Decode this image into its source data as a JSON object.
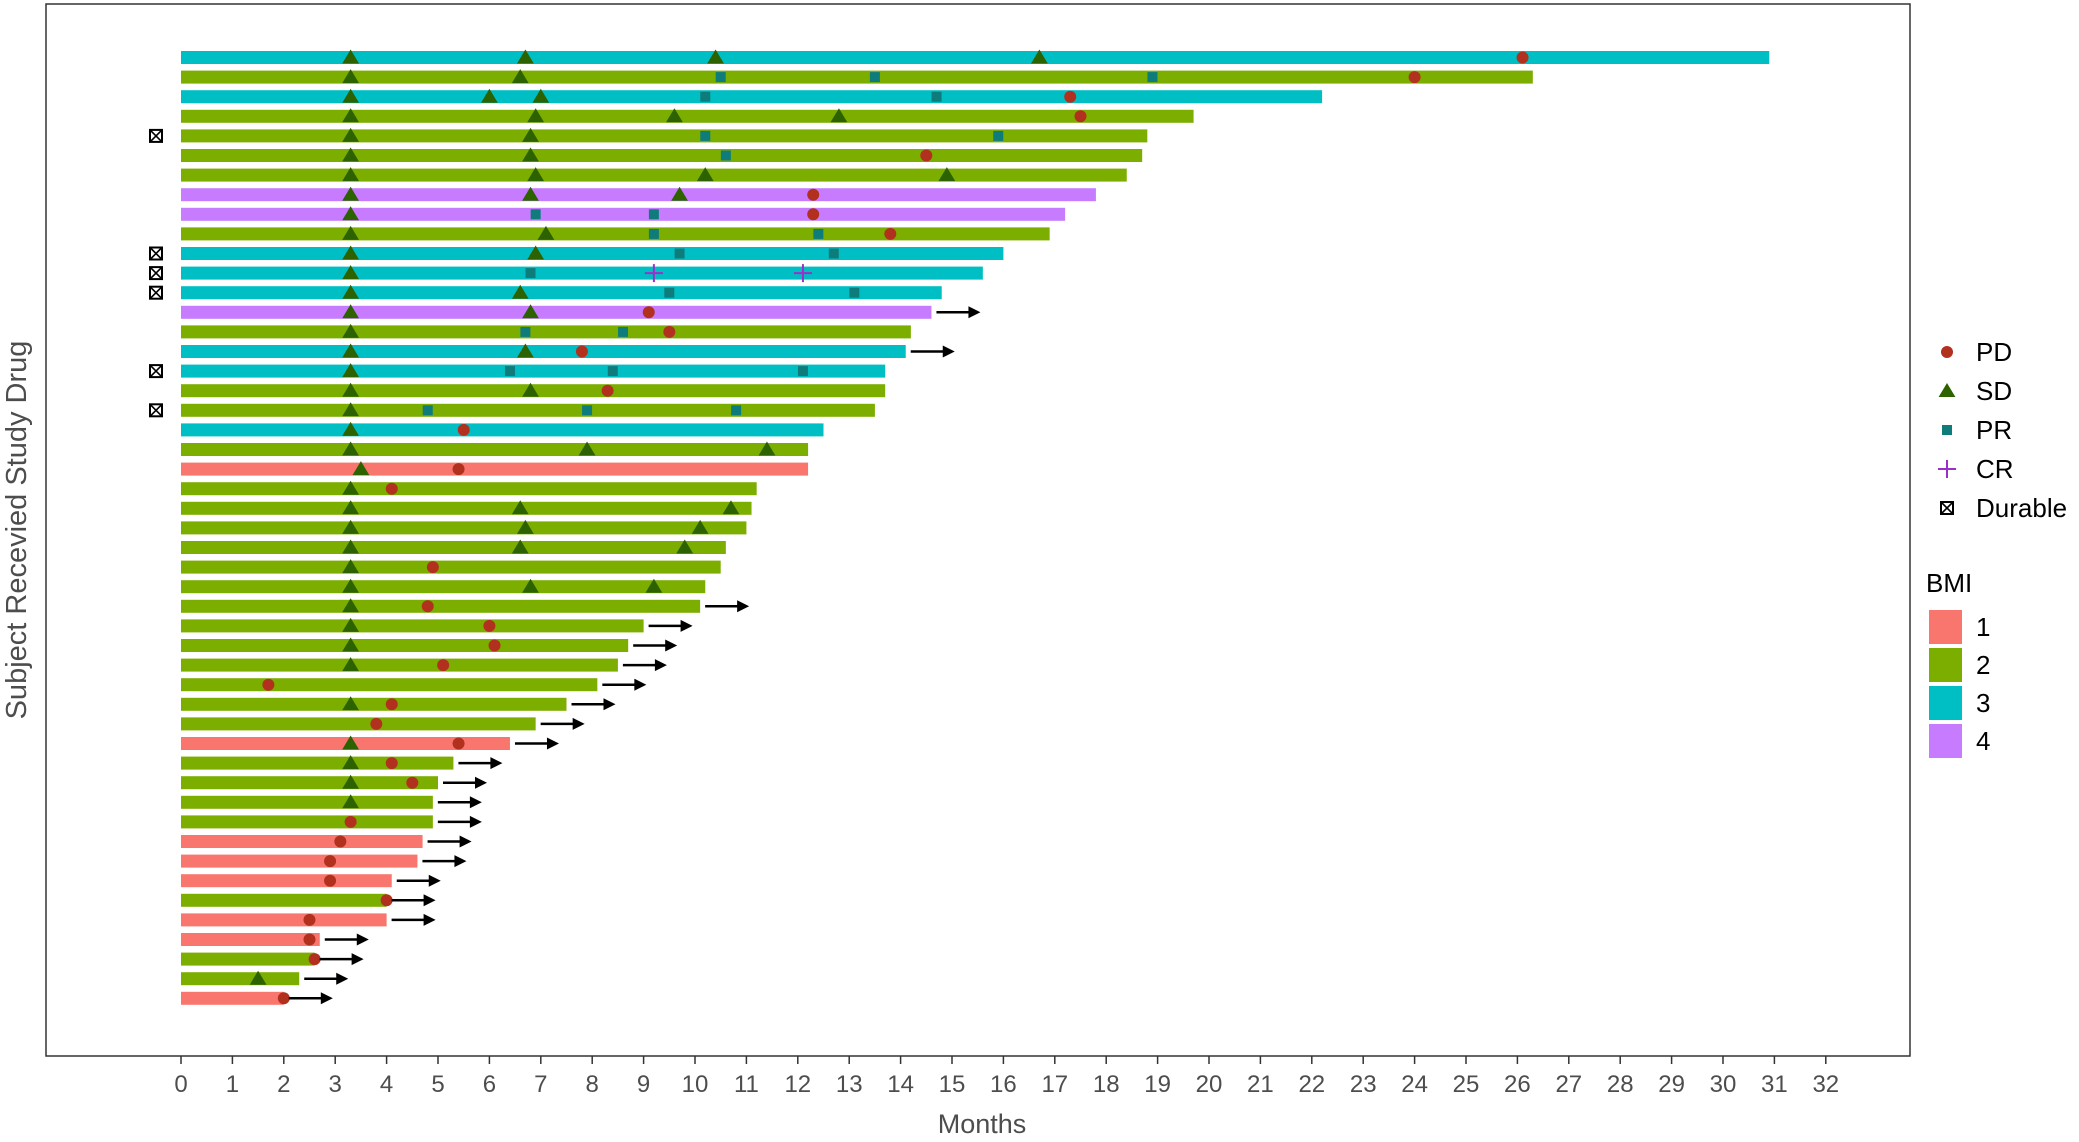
{
  "chart_data": {
    "type": "swimmer",
    "xlabel": "Months",
    "ylabel": "Subject Recevied Study Drug",
    "xlim": [
      -2.7,
      33.8
    ],
    "x_ticks": [
      "0",
      "1",
      "2",
      "3",
      "4",
      "5",
      "6",
      "7",
      "8",
      "9",
      "10",
      "11",
      "12",
      "13",
      "14",
      "15",
      "16",
      "17",
      "18",
      "19",
      "20",
      "21",
      "22",
      "23",
      "24",
      "25",
      "26",
      "27",
      "28",
      "29",
      "30",
      "31",
      "32"
    ],
    "grid": false,
    "legend_position": "right",
    "color_legend": {
      "title": "BMI",
      "items": [
        {
          "label": "1",
          "color": "#F8766D"
        },
        {
          "label": "2",
          "color": "#7CAE00"
        },
        {
          "label": "3",
          "color": "#00BFC4"
        },
        {
          "label": "4",
          "color": "#C77CFF"
        }
      ]
    },
    "marker_legend": [
      {
        "label": "PD",
        "shape": "circle",
        "color": "#B2301E"
      },
      {
        "label": "SD",
        "shape": "triangle",
        "color": "#2D6200"
      },
      {
        "label": "PR",
        "shape": "square",
        "color": "#0E7C7B"
      },
      {
        "label": "CR",
        "shape": "plus",
        "color": "#9B30C8"
      },
      {
        "label": "Durable",
        "shape": "boxed-x",
        "color": "#000000"
      }
    ],
    "subjects": [
      {
        "end": 30.9,
        "bmi": 3,
        "sd": [
          3.3,
          6.7,
          10.4,
          16.7
        ],
        "pd": [
          26.1
        ]
      },
      {
        "end": 26.3,
        "bmi": 2,
        "sd": [
          3.3,
          6.6
        ],
        "pr": [
          10.5,
          13.5,
          18.9
        ],
        "pd": [
          24.0
        ]
      },
      {
        "end": 22.2,
        "bmi": 3,
        "sd": [
          3.3,
          6.0,
          7.0
        ],
        "pr": [
          10.2,
          14.7
        ],
        "pd": [
          17.3
        ]
      },
      {
        "end": 19.7,
        "bmi": 2,
        "sd": [
          3.3,
          6.9,
          9.6,
          12.8
        ],
        "pd": [
          17.5
        ]
      },
      {
        "end": 18.8,
        "bmi": 2,
        "sd": [
          3.3,
          6.8
        ],
        "pr": [
          10.2,
          15.9
        ],
        "durable": true
      },
      {
        "end": 18.7,
        "bmi": 2,
        "sd": [
          3.3,
          6.8
        ],
        "pr": [
          10.6
        ],
        "pd": [
          14.5
        ]
      },
      {
        "end": 18.4,
        "bmi": 2,
        "sd": [
          3.3,
          6.9,
          10.2,
          14.9
        ]
      },
      {
        "end": 17.8,
        "bmi": 4,
        "sd": [
          3.3,
          6.8,
          9.7
        ],
        "pd": [
          12.3
        ]
      },
      {
        "end": 17.2,
        "bmi": 4,
        "sd": [
          3.3
        ],
        "pr": [
          6.9,
          9.2
        ],
        "pd": [
          12.3
        ]
      },
      {
        "end": 16.9,
        "bmi": 2,
        "sd": [
          3.3,
          7.1
        ],
        "pr": [
          9.2,
          12.4
        ],
        "pd": [
          13.8
        ]
      },
      {
        "end": 16.0,
        "bmi": 3,
        "sd": [
          3.3,
          6.9
        ],
        "pr": [
          9.7,
          12.7
        ],
        "durable": true
      },
      {
        "end": 15.6,
        "bmi": 3,
        "sd": [
          3.3
        ],
        "pr": [
          6.8
        ],
        "cr": [
          9.2,
          12.1
        ],
        "durable": true
      },
      {
        "end": 14.8,
        "bmi": 3,
        "sd": [
          3.3,
          6.6
        ],
        "pr": [
          9.5,
          13.1
        ],
        "durable": true
      },
      {
        "end": 14.6,
        "bmi": 4,
        "sd": [
          3.3,
          6.8
        ],
        "pd": [
          9.1
        ],
        "ongoing": true
      },
      {
        "end": 14.2,
        "bmi": 2,
        "sd": [
          3.3
        ],
        "pr": [
          6.7,
          8.6
        ],
        "pd": [
          9.5
        ]
      },
      {
        "end": 14.1,
        "bmi": 3,
        "sd": [
          3.3,
          6.7
        ],
        "pd": [
          7.8
        ],
        "ongoing": true
      },
      {
        "end": 13.7,
        "bmi": 3,
        "sd": [
          3.3
        ],
        "pr": [
          6.4,
          8.4,
          12.1
        ],
        "durable": true
      },
      {
        "end": 13.7,
        "bmi": 2,
        "sd": [
          3.3,
          6.8
        ],
        "pd": [
          8.3
        ]
      },
      {
        "end": 13.5,
        "bmi": 2,
        "sd": [
          3.3
        ],
        "pr": [
          4.8,
          7.9,
          10.8
        ],
        "durable": true
      },
      {
        "end": 12.5,
        "bmi": 3,
        "sd": [
          3.3
        ],
        "pd": [
          5.5
        ]
      },
      {
        "end": 12.2,
        "bmi": 2,
        "sd": [
          3.3,
          7.9,
          11.4
        ]
      },
      {
        "end": 12.2,
        "bmi": 1,
        "sd": [
          3.5
        ],
        "pd": [
          5.4
        ]
      },
      {
        "end": 11.2,
        "bmi": 2,
        "sd": [
          3.3
        ],
        "pd": [
          4.1
        ]
      },
      {
        "end": 11.1,
        "bmi": 2,
        "sd": [
          3.3,
          6.6,
          10.7
        ]
      },
      {
        "end": 11.0,
        "bmi": 2,
        "sd": [
          3.3,
          6.7,
          10.1
        ]
      },
      {
        "end": 10.6,
        "bmi": 2,
        "sd": [
          3.3,
          6.6,
          9.8
        ]
      },
      {
        "end": 10.5,
        "bmi": 2,
        "sd": [
          3.3
        ],
        "pd": [
          4.9
        ]
      },
      {
        "end": 10.2,
        "bmi": 2,
        "sd": [
          3.3,
          6.8,
          9.2
        ]
      },
      {
        "end": 10.1,
        "bmi": 2,
        "sd": [
          3.3
        ],
        "pd": [
          4.8
        ],
        "ongoing": true
      },
      {
        "end": 9.0,
        "bmi": 2,
        "sd": [
          3.3
        ],
        "pd": [
          6.0
        ],
        "ongoing": true
      },
      {
        "end": 8.7,
        "bmi": 2,
        "sd": [
          3.3
        ],
        "pd": [
          6.1
        ],
        "ongoing": true
      },
      {
        "end": 8.5,
        "bmi": 2,
        "sd": [
          3.3
        ],
        "pd": [
          5.1
        ],
        "ongoing": true
      },
      {
        "end": 8.1,
        "bmi": 2,
        "pd": [
          1.7
        ],
        "ongoing": true
      },
      {
        "end": 7.5,
        "bmi": 2,
        "sd": [
          3.3
        ],
        "pd": [
          4.1
        ],
        "ongoing": true
      },
      {
        "end": 6.9,
        "bmi": 2,
        "pd": [
          3.8
        ],
        "ongoing": true
      },
      {
        "end": 6.4,
        "bmi": 1,
        "sd": [
          3.3
        ],
        "pd": [
          5.4
        ],
        "ongoing": true
      },
      {
        "end": 5.3,
        "bmi": 2,
        "sd": [
          3.3
        ],
        "pd": [
          4.1
        ],
        "ongoing": true
      },
      {
        "end": 5.0,
        "bmi": 2,
        "sd": [
          3.3
        ],
        "pd": [
          4.5
        ],
        "ongoing": true
      },
      {
        "end": 4.9,
        "bmi": 2,
        "sd": [
          3.3
        ],
        "ongoing": true
      },
      {
        "end": 4.9,
        "bmi": 2,
        "pd": [
          3.3
        ],
        "ongoing": true
      },
      {
        "end": 4.7,
        "bmi": 1,
        "pd": [
          3.1
        ],
        "ongoing": true
      },
      {
        "end": 4.6,
        "bmi": 1,
        "pd": [
          2.9
        ],
        "ongoing": true
      },
      {
        "end": 4.1,
        "bmi": 1,
        "pd": [
          2.9
        ],
        "ongoing": true
      },
      {
        "end": 4.0,
        "bmi": 2,
        "pd": [
          4.0
        ],
        "ongoing": true
      },
      {
        "end": 4.0,
        "bmi": 1,
        "pd": [
          2.5
        ],
        "ongoing": true
      },
      {
        "end": 2.7,
        "bmi": 1,
        "pd": [
          2.5
        ],
        "ongoing": true
      },
      {
        "end": 2.6,
        "bmi": 2,
        "pd": [
          2.6
        ],
        "ongoing": true
      },
      {
        "end": 2.3,
        "bmi": 2,
        "sd": [
          1.5
        ],
        "ongoing": true
      },
      {
        "end": 2.0,
        "bmi": 1,
        "pd": [
          2.0
        ],
        "ongoing": true
      }
    ]
  }
}
